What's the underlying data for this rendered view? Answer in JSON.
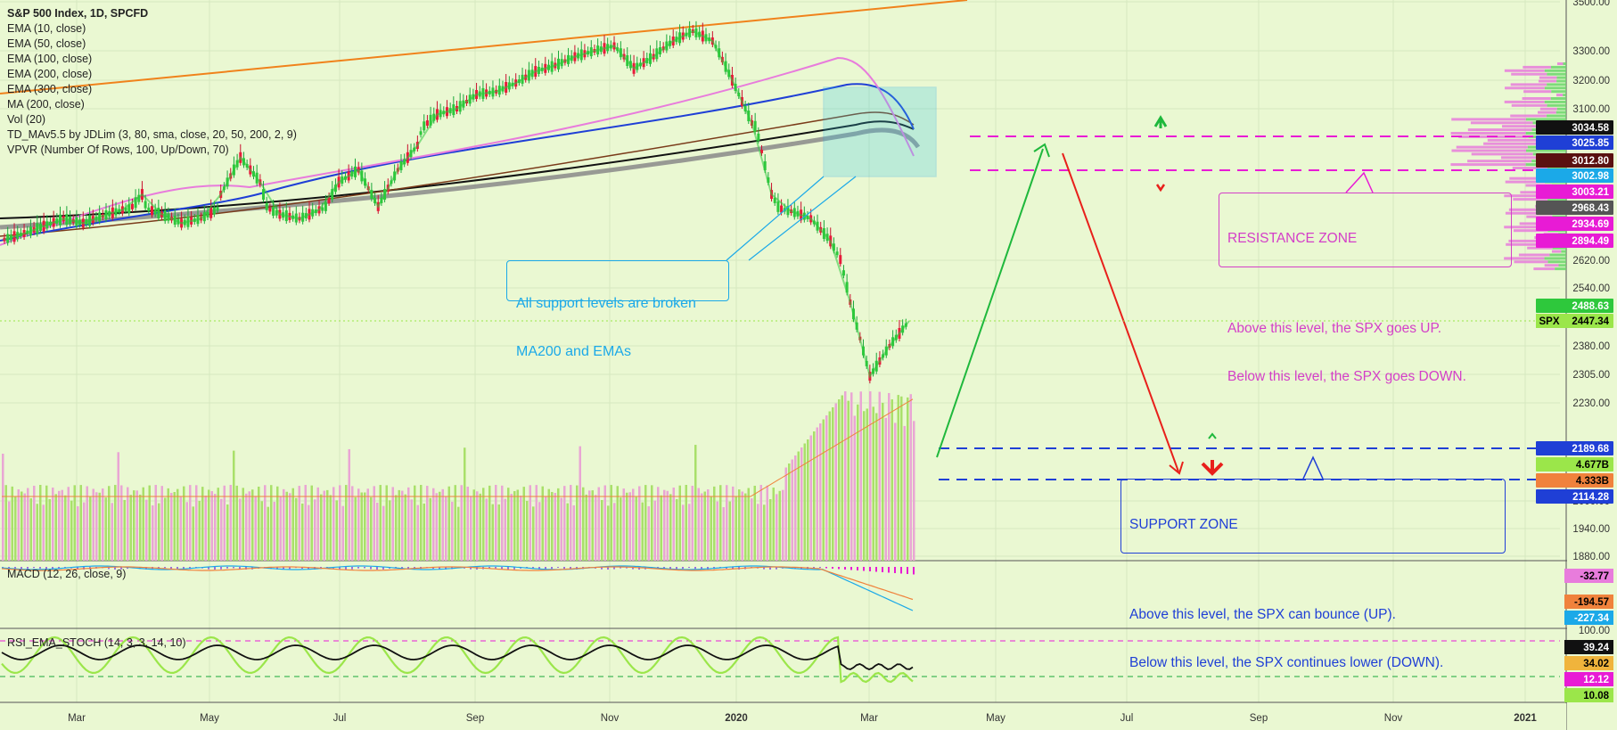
{
  "legend": {
    "title": "S&P 500 Index, 1D, SPCFD",
    "lines": [
      "EMA (10, close)",
      "EMA (50, close)",
      "EMA (100, close)",
      "EMA (200, close)",
      "EMA (300, close)",
      "MA (200, close)",
      "Vol (20)",
      "TD_MAv5.5 by JDLim (3, 80, sma, close, 20, 50, 200, 2, 9)",
      "VPVR (Number Of Rows, 100, Up/Down, 70)"
    ]
  },
  "panes": {
    "macd_label": "MACD (12, 26, close, 9)",
    "rsi_label": "RSI_EMA_STOCH (14, 3, 3, 14, 10)"
  },
  "annotations": {
    "support_broken": [
      "All support levels are broken",
      "MA200 and EMAs"
    ],
    "resistance": {
      "title": "RESISTANCE ZONE",
      "line1": "Above this level, the SPX goes UP.",
      "line2": "Below this level, the SPX goes DOWN."
    },
    "support_zone": {
      "title": "SUPPORT ZONE",
      "line1": "Above this level, the SPX can bounce (UP).",
      "line2": "Below this level, the SPX continues lower (DOWN)."
    }
  },
  "colors": {
    "background": "#eaf8d2",
    "resistance": "#e81bd5",
    "support": "#1f3fd6",
    "up_arrow": "#1fb83c",
    "down_arrow": "#e8201b"
  },
  "chart_data": {
    "type": "line",
    "ylim": [
      1860,
      3530
    ],
    "time_axis": [
      "Mar",
      "May",
      "Jul",
      "Sep",
      "Nov",
      "2020",
      "Mar",
      "May",
      "Jul",
      "Sep",
      "Nov",
      "2021"
    ],
    "price_ticks": [
      3500,
      3300,
      3200,
      3100,
      2620,
      2540,
      2380,
      2305,
      2230,
      2000,
      1940,
      1880
    ],
    "macd_axis": "",
    "rsi_ticks": [
      100
    ],
    "series": [
      {
        "values": [
          2760,
          2800,
          2850,
          2900,
          2870,
          2920,
          2960,
          2980,
          2930,
          2870,
          2900,
          2980,
          3010,
          2990,
          2930,
          2900,
          2960,
          2990,
          3000,
          2970,
          3000,
          3020,
          3080,
          3100,
          3150,
          3160,
          3190,
          3230,
          3250,
          3280,
          3300,
          3320,
          3240,
          3280,
          3340,
          3380,
          3340,
          3200,
          3050,
          2980,
          2950,
          2900,
          2750,
          2500,
          2300,
          2380,
          2447.34
        ]
      }
    ],
    "levels": [
      {
        "name": "resistance_upper",
        "value": 3034.58
      },
      {
        "name": "resistance_lower",
        "value": 2968.43
      },
      {
        "name": "support_upper",
        "value": 2189.68
      },
      {
        "name": "support_lower",
        "value": 2114.28
      }
    ],
    "price_labels": [
      {
        "text": "3034.58",
        "bg": "#111111",
        "fg": "#ffffff"
      },
      {
        "text": "3025.85",
        "bg": "#1f3fd6",
        "fg": "#ffffff"
      },
      {
        "text": "3012.80",
        "bg": "#5a1010",
        "fg": "#ffffff"
      },
      {
        "text": "3002.98",
        "bg": "#1ba9e8",
        "fg": "#ffffff"
      },
      {
        "text": "3003.21",
        "bg": "#e81bd5",
        "fg": "#ffffff"
      },
      {
        "text": "2968.43",
        "bg": "#555555",
        "fg": "#ffffff"
      },
      {
        "text": "2934.69",
        "bg": "#e81bd5",
        "fg": "#ffffff"
      },
      {
        "text": "2894.49",
        "bg": "#e81bd5",
        "fg": "#ffffff"
      },
      {
        "text": "2488.63",
        "bg": "#2ec83c",
        "fg": "#ffffff"
      },
      {
        "text": "2447.34",
        "bg": "#9be64a",
        "fg": "#000000"
      },
      {
        "text": "2189.68",
        "bg": "#1f3fd6",
        "fg": "#ffffff"
      },
      {
        "text": "4.677B",
        "bg": "#9be64a",
        "fg": "#000000"
      },
      {
        "text": "4.333B",
        "bg": "#f0823c",
        "fg": "#000000"
      },
      {
        "text": "2114.28",
        "bg": "#1f3fd6",
        "fg": "#ffffff"
      }
    ],
    "spx_tag": "SPX",
    "macd_labels": [
      {
        "text": "-32.77",
        "bg": "#e87cdc",
        "fg": "#000000"
      },
      {
        "text": "-194.57",
        "bg": "#f0823c",
        "fg": "#000000"
      },
      {
        "text": "-227.34",
        "bg": "#1ba9e8",
        "fg": "#ffffff"
      }
    ],
    "rsi_labels": [
      {
        "text": "39.24",
        "bg": "#111111",
        "fg": "#ffffff"
      },
      {
        "text": "34.02",
        "bg": "#f0b43c",
        "fg": "#000000"
      },
      {
        "text": "12.12",
        "bg": "#e81bd5",
        "fg": "#ffffff"
      },
      {
        "text": "10.08",
        "bg": "#9be64a",
        "fg": "#000000"
      }
    ]
  }
}
